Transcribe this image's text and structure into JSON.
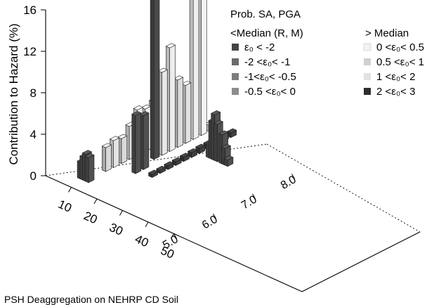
{
  "chart_data": {
    "type": "bar",
    "ylabel": "Contribution to Hazard (%)",
    "ylim": [
      0,
      16
    ],
    "y_ticks": [
      "0",
      "4",
      "8",
      "12",
      "16"
    ],
    "x_ticks": [
      "10",
      "20",
      "30",
      "40",
      "50"
    ],
    "z_ticks": [
      "5.0",
      "6.0",
      "7.0",
      "8.0"
    ],
    "legend": {
      "title": "Prob. SA, PGA",
      "left_header": "<Median (R, M)",
      "right_header": "> Median",
      "left_items": [
        {
          "label": "ε₀ < -2",
          "color": "#444444"
        },
        {
          "label": "-2 <ε₀< -1",
          "color": "#6b6b6b"
        },
        {
          "label": "-1<ε₀< -0.5",
          "color": "#7d7d7d"
        },
        {
          "label": "-0.5 <ε₀< 0",
          "color": "#8c8c8c"
        }
      ],
      "right_items": [
        {
          "label": "0 <ε₀< 0.5",
          "color": "#f2f2f2"
        },
        {
          "label": "0.5 <ε₀< 1",
          "color": "#cfcfcf"
        },
        {
          "label": "1 <ε₀< 2",
          "color": "#e2e2e2"
        },
        {
          "label": "2 <ε₀< 3",
          "color": "#2e2e2e"
        }
      ]
    },
    "bars": [
      {
        "distance": 8,
        "magnitude": 5.4,
        "value": 1.6,
        "color": "#505050"
      },
      {
        "distance": 9,
        "magnitude": 5.4,
        "value": 2.2,
        "color": "#505050"
      },
      {
        "distance": 10,
        "magnitude": 5.4,
        "value": 2.6,
        "color": "#505050"
      },
      {
        "distance": 11,
        "magnitude": 5.4,
        "value": 2.4,
        "color": "#505050"
      },
      {
        "distance": 10,
        "magnitude": 5.9,
        "value": 2.3,
        "color": "#d8d8d8"
      },
      {
        "distance": 10,
        "magnitude": 6.1,
        "value": 2.6,
        "color": "#e4e4e4"
      },
      {
        "distance": 10,
        "magnitude": 6.3,
        "value": 2.4,
        "color": "#dadada"
      },
      {
        "distance": 10,
        "magnitude": 6.5,
        "value": 3.2,
        "color": "#e0e0e0"
      },
      {
        "distance": 10,
        "magnitude": 6.7,
        "value": 4.4,
        "color": "#e8e8e8"
      },
      {
        "distance": 10,
        "magnitude": 6.9,
        "value": 4.1,
        "color": "#f0f0f0"
      },
      {
        "distance": 10,
        "magnitude": 7.1,
        "value": 4.4,
        "color": "#f4f4f4"
      },
      {
        "distance": 17,
        "magnitude": 6.2,
        "value": 5.6,
        "color": "#505050"
      },
      {
        "distance": 17,
        "magnitude": 6.4,
        "value": 5.2,
        "color": "#505050"
      },
      {
        "distance": 15,
        "magnitude": 6.8,
        "value": 16.0,
        "color": "#4a4a4a"
      },
      {
        "distance": 15,
        "magnitude": 7.0,
        "value": 8.0,
        "color": "#e8e8e8"
      },
      {
        "distance": 15,
        "magnitude": 7.2,
        "value": 10.0,
        "color": "#ececec"
      },
      {
        "distance": 15,
        "magnitude": 7.4,
        "value": 6.5,
        "color": "#dcdcdc"
      },
      {
        "distance": 15,
        "magnitude": 7.6,
        "value": 5.6,
        "color": "#e2e2e2"
      },
      {
        "distance": 15,
        "magnitude": 7.8,
        "value": 14.0,
        "color": "#eeeeee"
      },
      {
        "distance": 15,
        "magnitude": 8.0,
        "value": 15.2,
        "color": "#f4f4f4"
      },
      {
        "distance": 15,
        "magnitude": 8.2,
        "value": 0.6,
        "color": "#e8e8e8"
      },
      {
        "distance": 22,
        "magnitude": 6.3,
        "value": 0.3,
        "color": "#404040"
      },
      {
        "distance": 22,
        "magnitude": 6.5,
        "value": 0.3,
        "color": "#404040"
      },
      {
        "distance": 22,
        "magnitude": 6.7,
        "value": 0.35,
        "color": "#404040"
      },
      {
        "distance": 22,
        "magnitude": 6.9,
        "value": 0.35,
        "color": "#404040"
      },
      {
        "distance": 22,
        "magnitude": 7.1,
        "value": 0.4,
        "color": "#404040"
      },
      {
        "distance": 22,
        "magnitude": 7.3,
        "value": 0.45,
        "color": "#404040"
      },
      {
        "distance": 22,
        "magnitude": 7.5,
        "value": 0.5,
        "color": "#404040"
      },
      {
        "distance": 22,
        "magnitude": 7.7,
        "value": 0.5,
        "color": "#404040"
      },
      {
        "distance": 22,
        "magnitude": 7.9,
        "value": 0.45,
        "color": "#404040"
      },
      {
        "distance": 22,
        "magnitude": 8.1,
        "value": 0.5,
        "color": "#404040"
      },
      {
        "distance": 22,
        "magnitude": 8.3,
        "value": 0.45,
        "color": "#404040"
      },
      {
        "distance": 33,
        "magnitude": 7.5,
        "value": 0.6,
        "color": "#505050"
      },
      {
        "distance": 32,
        "magnitude": 7.5,
        "value": 1.6,
        "color": "#505050"
      },
      {
        "distance": 31,
        "magnitude": 7.5,
        "value": 2.8,
        "color": "#505050"
      },
      {
        "distance": 29,
        "magnitude": 7.5,
        "value": 3.6,
        "color": "#505050"
      },
      {
        "distance": 28,
        "magnitude": 7.5,
        "value": 4.4,
        "color": "#505050"
      },
      {
        "distance": 27,
        "magnitude": 7.5,
        "value": 3.6,
        "color": "#505050"
      },
      {
        "distance": 26,
        "magnitude": 7.5,
        "value": 1.2,
        "color": "#505050"
      }
    ]
  },
  "footer_text": "PSH Deaggregation on NEHRP CD Soil"
}
